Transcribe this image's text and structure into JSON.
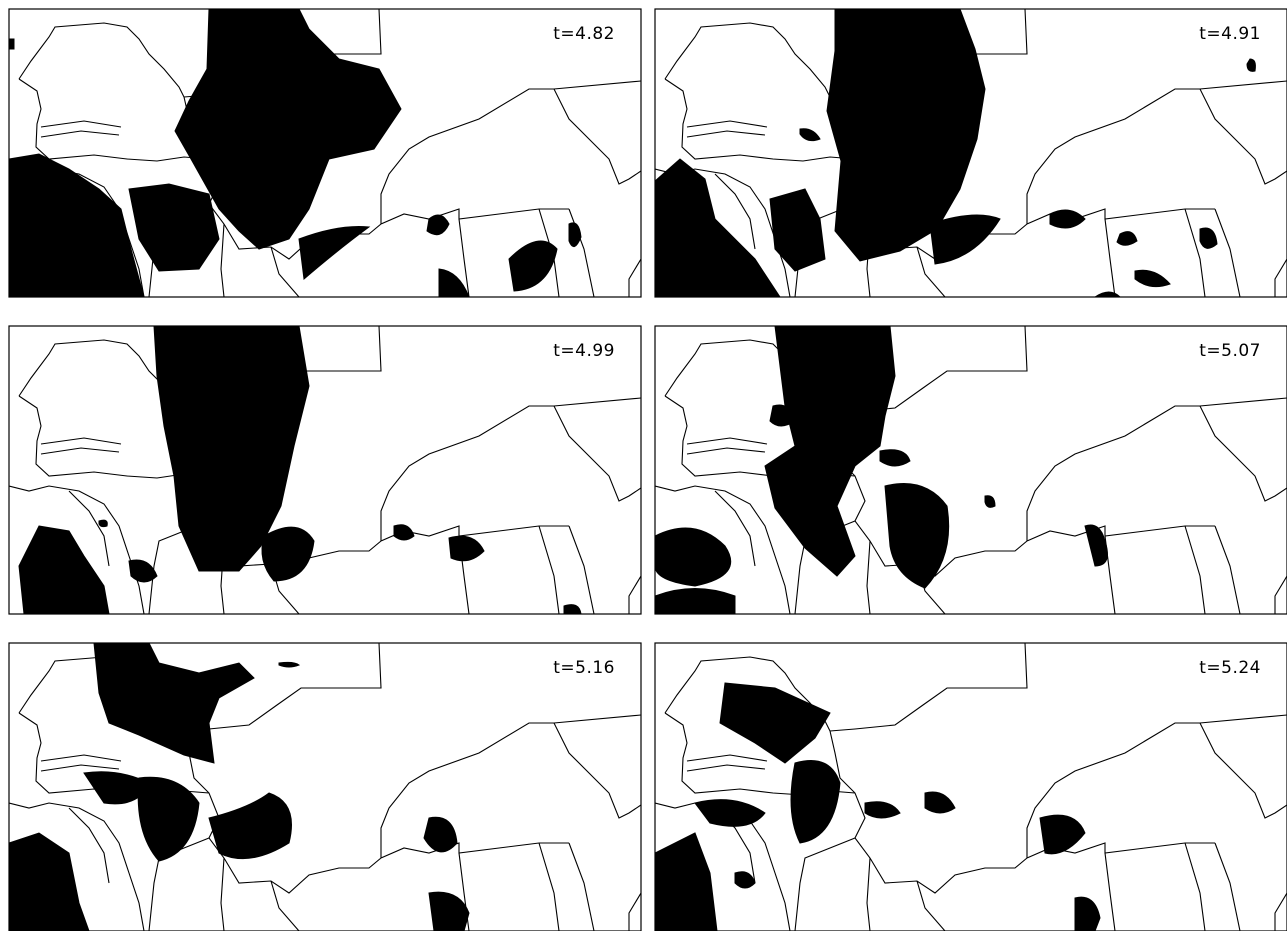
{
  "panels": [
    {
      "label": "t=4.82"
    },
    {
      "label": "t=4.91"
    },
    {
      "label": "t=4.99"
    },
    {
      "label": "t=5.07"
    },
    {
      "label": "t=5.16"
    },
    {
      "label": "t=5.24"
    }
  ]
}
